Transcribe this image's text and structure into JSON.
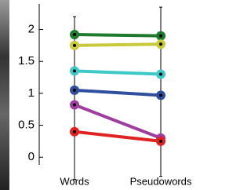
{
  "chart_data": {
    "type": "line",
    "categories": [
      "Words",
      "Pseudowords"
    ],
    "series": [
      {
        "color": "#1f7a30",
        "values": [
          1.92,
          1.9
        ]
      },
      {
        "color": "#c9c93c",
        "values": [
          1.75,
          1.77
        ]
      },
      {
        "color": "#3ec8c8",
        "values": [
          1.35,
          1.3
        ]
      },
      {
        "color": "#2f4f9e",
        "values": [
          1.05,
          0.97
        ]
      },
      {
        "color": "#a03ea0",
        "values": [
          0.82,
          0.3
        ]
      },
      {
        "color": "#e02222",
        "values": [
          0.4,
          0.25
        ]
      }
    ],
    "error_low": [
      -0.35,
      -0.3
    ],
    "error_high": [
      2.2,
      2.35
    ],
    "ylim": [
      -0.12,
      2.4
    ],
    "yticks": [
      0,
      0.5,
      1,
      1.5,
      2
    ]
  }
}
